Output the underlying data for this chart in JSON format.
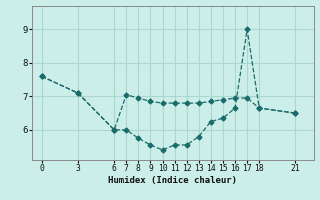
{
  "xlabel": "Humidex (Indice chaleur)",
  "bg_color": "#cceee8",
  "line_color": "#1a6b6b",
  "grid_color": "#aad8d0",
  "line1_x": [
    0,
    3,
    6,
    7,
    8,
    9,
    10,
    11,
    12,
    13,
    14,
    15,
    16,
    17,
    18,
    21
  ],
  "line1_y": [
    7.6,
    7.1,
    6.0,
    6.0,
    5.75,
    5.55,
    5.4,
    5.55,
    5.55,
    5.8,
    6.25,
    6.35,
    6.65,
    9.0,
    6.65,
    6.5
  ],
  "line2_x": [
    0,
    3,
    6,
    7,
    8,
    9,
    10,
    11,
    12,
    13,
    14,
    15,
    16,
    17,
    18,
    21
  ],
  "line2_y": [
    7.6,
    7.1,
    6.0,
    7.05,
    6.95,
    6.85,
    6.8,
    6.8,
    6.8,
    6.8,
    6.85,
    6.9,
    6.95,
    6.95,
    6.65,
    6.5
  ],
  "xticks": [
    0,
    3,
    6,
    7,
    8,
    9,
    10,
    11,
    12,
    13,
    14,
    15,
    16,
    17,
    18,
    21
  ],
  "yticks": [
    6,
    7,
    8,
    9
  ],
  "xlim": [
    -0.8,
    22.5
  ],
  "ylim": [
    5.1,
    9.7
  ]
}
